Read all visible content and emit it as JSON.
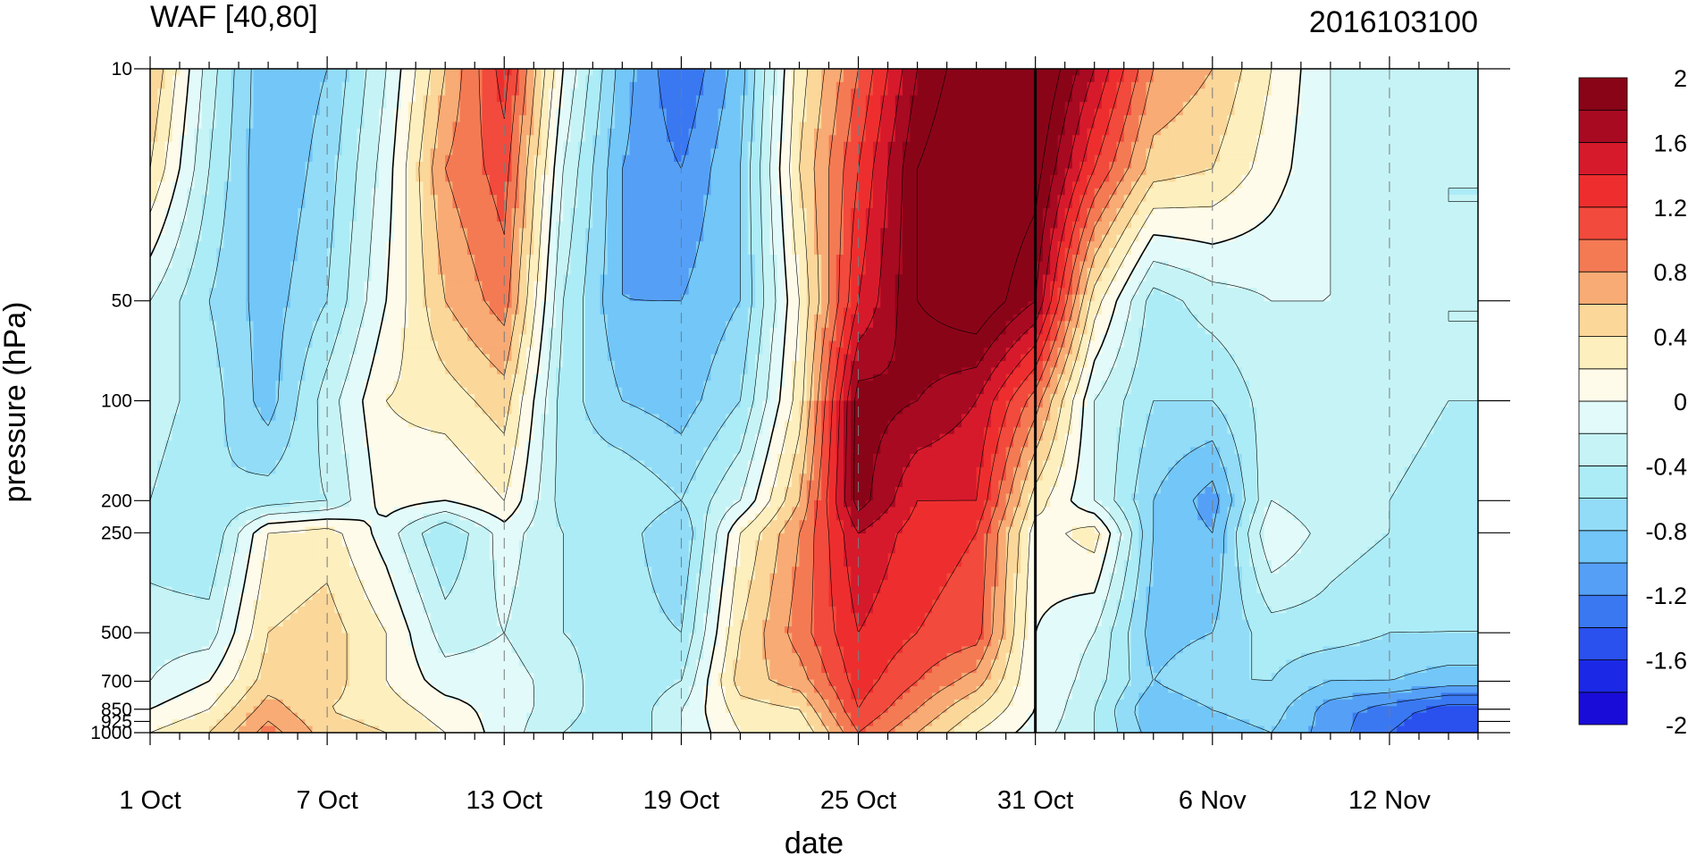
{
  "chart_data": {
    "type": "heatmap",
    "title": "WAF [40,80]",
    "subtitle": "2016103100",
    "xlabel": "date",
    "ylabel": "pressure (hPa)",
    "x_ticks": [
      {
        "day": 0,
        "label": "1 Oct"
      },
      {
        "day": 6,
        "label": "7 Oct"
      },
      {
        "day": 12,
        "label": "13 Oct"
      },
      {
        "day": 18,
        "label": "19 Oct"
      },
      {
        "day": 24,
        "label": "25 Oct"
      },
      {
        "day": 30,
        "label": "31 Oct"
      },
      {
        "day": 36,
        "label": "6 Nov"
      },
      {
        "day": 42,
        "label": "12 Nov"
      }
    ],
    "x_range_days": [
      0,
      45
    ],
    "marker_day": 30,
    "y_ticks": [
      10,
      50,
      100,
      200,
      250,
      500,
      700,
      850,
      925,
      1000
    ],
    "y_tick_labels": [
      "10",
      "50",
      "100",
      "200",
      "250",
      "500",
      "700",
      "850",
      "925",
      "1000"
    ],
    "y_range_hPa": [
      10,
      1000
    ],
    "y_scale": "log",
    "levels": [
      -2,
      -1.8,
      -1.6,
      -1.4,
      -1.2,
      -1,
      -0.8,
      -0.6,
      -0.4,
      -0.2,
      0,
      0.2,
      0.4,
      0.6,
      0.8,
      1,
      1.2,
      1.4,
      1.6,
      1.8,
      2
    ],
    "colorbar_labels": [
      {
        "value": 2,
        "label": "2"
      },
      {
        "value": 1.6,
        "label": "1.6"
      },
      {
        "value": 1.2,
        "label": "1.2"
      },
      {
        "value": 0.8,
        "label": "0.8"
      },
      {
        "value": 0.4,
        "label": "0.4"
      },
      {
        "value": 0,
        "label": "0"
      },
      {
        "value": -0.4,
        "label": "-0.4"
      },
      {
        "value": -0.8,
        "label": "-0.8"
      },
      {
        "value": -1.2,
        "label": "-1.2"
      },
      {
        "value": -1.6,
        "label": "-1.6"
      },
      {
        "value": -2,
        "label": "-2"
      }
    ],
    "colors": [
      "#1a0cd8",
      "#1b28e6",
      "#2a50ee",
      "#3a78f2",
      "#55a0f6",
      "#72c6f8",
      "#92dcf8",
      "#acecf6",
      "#c6f4f6",
      "#e2fbfa",
      "#fffbea",
      "#fdefbe",
      "#fbd79a",
      "#f8ab74",
      "#f47a54",
      "#f24a3c",
      "#ee2e2e",
      "#d61a2c",
      "#a80a22",
      "#8a0418"
    ],
    "field": {
      "days": [
        0,
        2,
        4,
        6,
        8,
        10,
        12,
        14,
        16,
        18,
        20,
        22,
        24,
        26,
        28,
        30,
        32,
        34,
        36,
        38,
        40,
        42,
        44,
        45
      ],
      "pressure_hPa": [
        10,
        20,
        50,
        100,
        200,
        250,
        500,
        700,
        850,
        1000
      ],
      "values": [
        [
          0.6,
          -0.3,
          -1.0,
          -0.8,
          -0.2,
          0.6,
          1.3,
          0.0,
          -0.9,
          -1.4,
          -0.9,
          0.3,
          1.0,
          1.8,
          2.2,
          2.3,
          1.6,
          0.8,
          0.6,
          0.2,
          -0.2,
          -0.3,
          -0.4,
          -0.4
        ],
        [
          0.4,
          -0.4,
          -1.0,
          -0.7,
          -0.1,
          0.8,
          1.1,
          -0.2,
          -1.0,
          -1.2,
          -0.8,
          0.4,
          1.2,
          2.0,
          2.3,
          2.1,
          1.2,
          0.5,
          0.4,
          0.1,
          -0.2,
          -0.3,
          -0.4,
          -0.4
        ],
        [
          -0.2,
          -0.6,
          -0.9,
          -0.6,
          0.0,
          0.6,
          0.9,
          -0.4,
          -1.0,
          -1.0,
          -0.8,
          0.2,
          1.4,
          2.0,
          2.2,
          1.8,
          0.3,
          -0.5,
          -0.3,
          -0.2,
          -0.2,
          -0.3,
          -0.4,
          -0.4
        ],
        [
          -0.3,
          -0.5,
          -0.9,
          -0.3,
          0.2,
          0.3,
          0.5,
          -0.5,
          -0.8,
          -0.9,
          -0.6,
          0.3,
          1.9,
          1.8,
          1.6,
          0.9,
          -0.2,
          -0.6,
          -0.6,
          -0.3,
          -0.2,
          -0.3,
          -0.4,
          -0.4
        ],
        [
          -0.4,
          -0.6,
          -0.5,
          -0.4,
          0.1,
          0.0,
          0.2,
          -0.5,
          -0.4,
          -0.6,
          -0.2,
          0.6,
          1.9,
          1.4,
          1.4,
          0.3,
          -0.2,
          -0.8,
          -1.1,
          -0.2,
          -0.4,
          -0.4,
          -0.5,
          -0.5
        ],
        [
          -0.5,
          -0.6,
          0.2,
          0.3,
          -0.1,
          -0.6,
          -0.1,
          -0.4,
          -0.5,
          -0.8,
          0.2,
          0.8,
          1.6,
          1.3,
          1.2,
          0.1,
          0.3,
          -0.8,
          -1.0,
          0.0,
          -0.3,
          -0.4,
          -0.5,
          -0.5
        ],
        [
          -0.3,
          -0.3,
          0.4,
          0.5,
          0.2,
          -0.3,
          -0.2,
          -0.4,
          -0.5,
          -0.6,
          0.4,
          0.9,
          1.4,
          1.2,
          1.1,
          0.0,
          -0.2,
          -0.9,
          -0.8,
          -0.5,
          -0.5,
          -0.6,
          -0.6,
          -0.6
        ],
        [
          -0.2,
          0.0,
          0.5,
          0.5,
          0.2,
          -0.1,
          -0.1,
          -0.3,
          -0.6,
          -0.4,
          0.5,
          0.7,
          1.3,
          1.0,
          0.7,
          0.0,
          -0.3,
          -0.8,
          -0.6,
          -0.6,
          -0.8,
          -0.8,
          -0.9,
          -0.9
        ],
        [
          0.0,
          0.2,
          0.7,
          0.4,
          0.3,
          0.1,
          -0.1,
          -0.3,
          -0.6,
          -0.2,
          0.3,
          0.4,
          1.2,
          0.8,
          0.4,
          0.0,
          -0.4,
          -1.0,
          -0.8,
          -0.7,
          -1.1,
          -1.3,
          -1.5,
          -1.5
        ],
        [
          0.2,
          0.4,
          0.9,
          0.5,
          0.4,
          0.2,
          -0.1,
          -0.4,
          -0.6,
          -0.2,
          0.2,
          0.2,
          1.0,
          0.6,
          0.2,
          -0.1,
          -0.4,
          -0.9,
          -0.9,
          -0.8,
          -1.1,
          -1.4,
          -1.6,
          -1.6
        ]
      ]
    }
  }
}
